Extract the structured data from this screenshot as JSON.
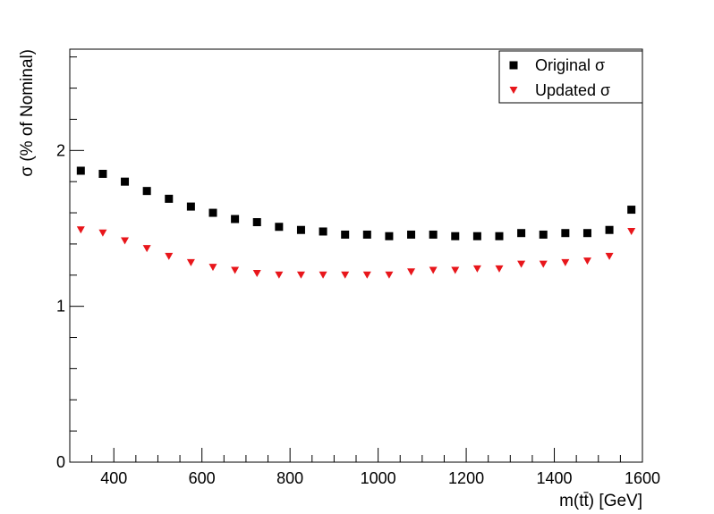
{
  "chart_data": {
    "type": "scatter",
    "title": "",
    "xlabel": "m(tt̄) [GeV]",
    "ylabel": "σ (% of Nominal)",
    "xlim": [
      300,
      1600
    ],
    "ylim": [
      0,
      2.65
    ],
    "xticks": [
      400,
      600,
      800,
      1000,
      1200,
      1400,
      1600
    ],
    "xtick_labels": [
      "400",
      "600",
      "800",
      "1000",
      "1200",
      "1400",
      "1600"
    ],
    "yticks": [
      0,
      1,
      2
    ],
    "ytick_labels": [
      "0",
      "1",
      "2"
    ],
    "grid": false,
    "legend": "top-right",
    "x": [
      325,
      375,
      425,
      475,
      525,
      575,
      625,
      675,
      725,
      775,
      825,
      875,
      925,
      975,
      1025,
      1075,
      1125,
      1175,
      1225,
      1275,
      1325,
      1375,
      1425,
      1475,
      1525,
      1575
    ],
    "series": [
      {
        "name": "Original σ",
        "marker": "square",
        "color": "#000000",
        "values": [
          1.87,
          1.85,
          1.8,
          1.74,
          1.69,
          1.64,
          1.6,
          1.56,
          1.54,
          1.51,
          1.49,
          1.48,
          1.46,
          1.46,
          1.45,
          1.46,
          1.46,
          1.45,
          1.45,
          1.45,
          1.47,
          1.46,
          1.47,
          1.47,
          1.49,
          1.62
        ]
      },
      {
        "name": "Updated σ",
        "marker": "triangle-down",
        "color": "#e8161b",
        "values": [
          1.49,
          1.47,
          1.42,
          1.37,
          1.32,
          1.28,
          1.25,
          1.23,
          1.21,
          1.2,
          1.2,
          1.2,
          1.2,
          1.2,
          1.2,
          1.22,
          1.23,
          1.23,
          1.24,
          1.24,
          1.27,
          1.27,
          1.28,
          1.29,
          1.32,
          1.48
        ]
      }
    ]
  }
}
